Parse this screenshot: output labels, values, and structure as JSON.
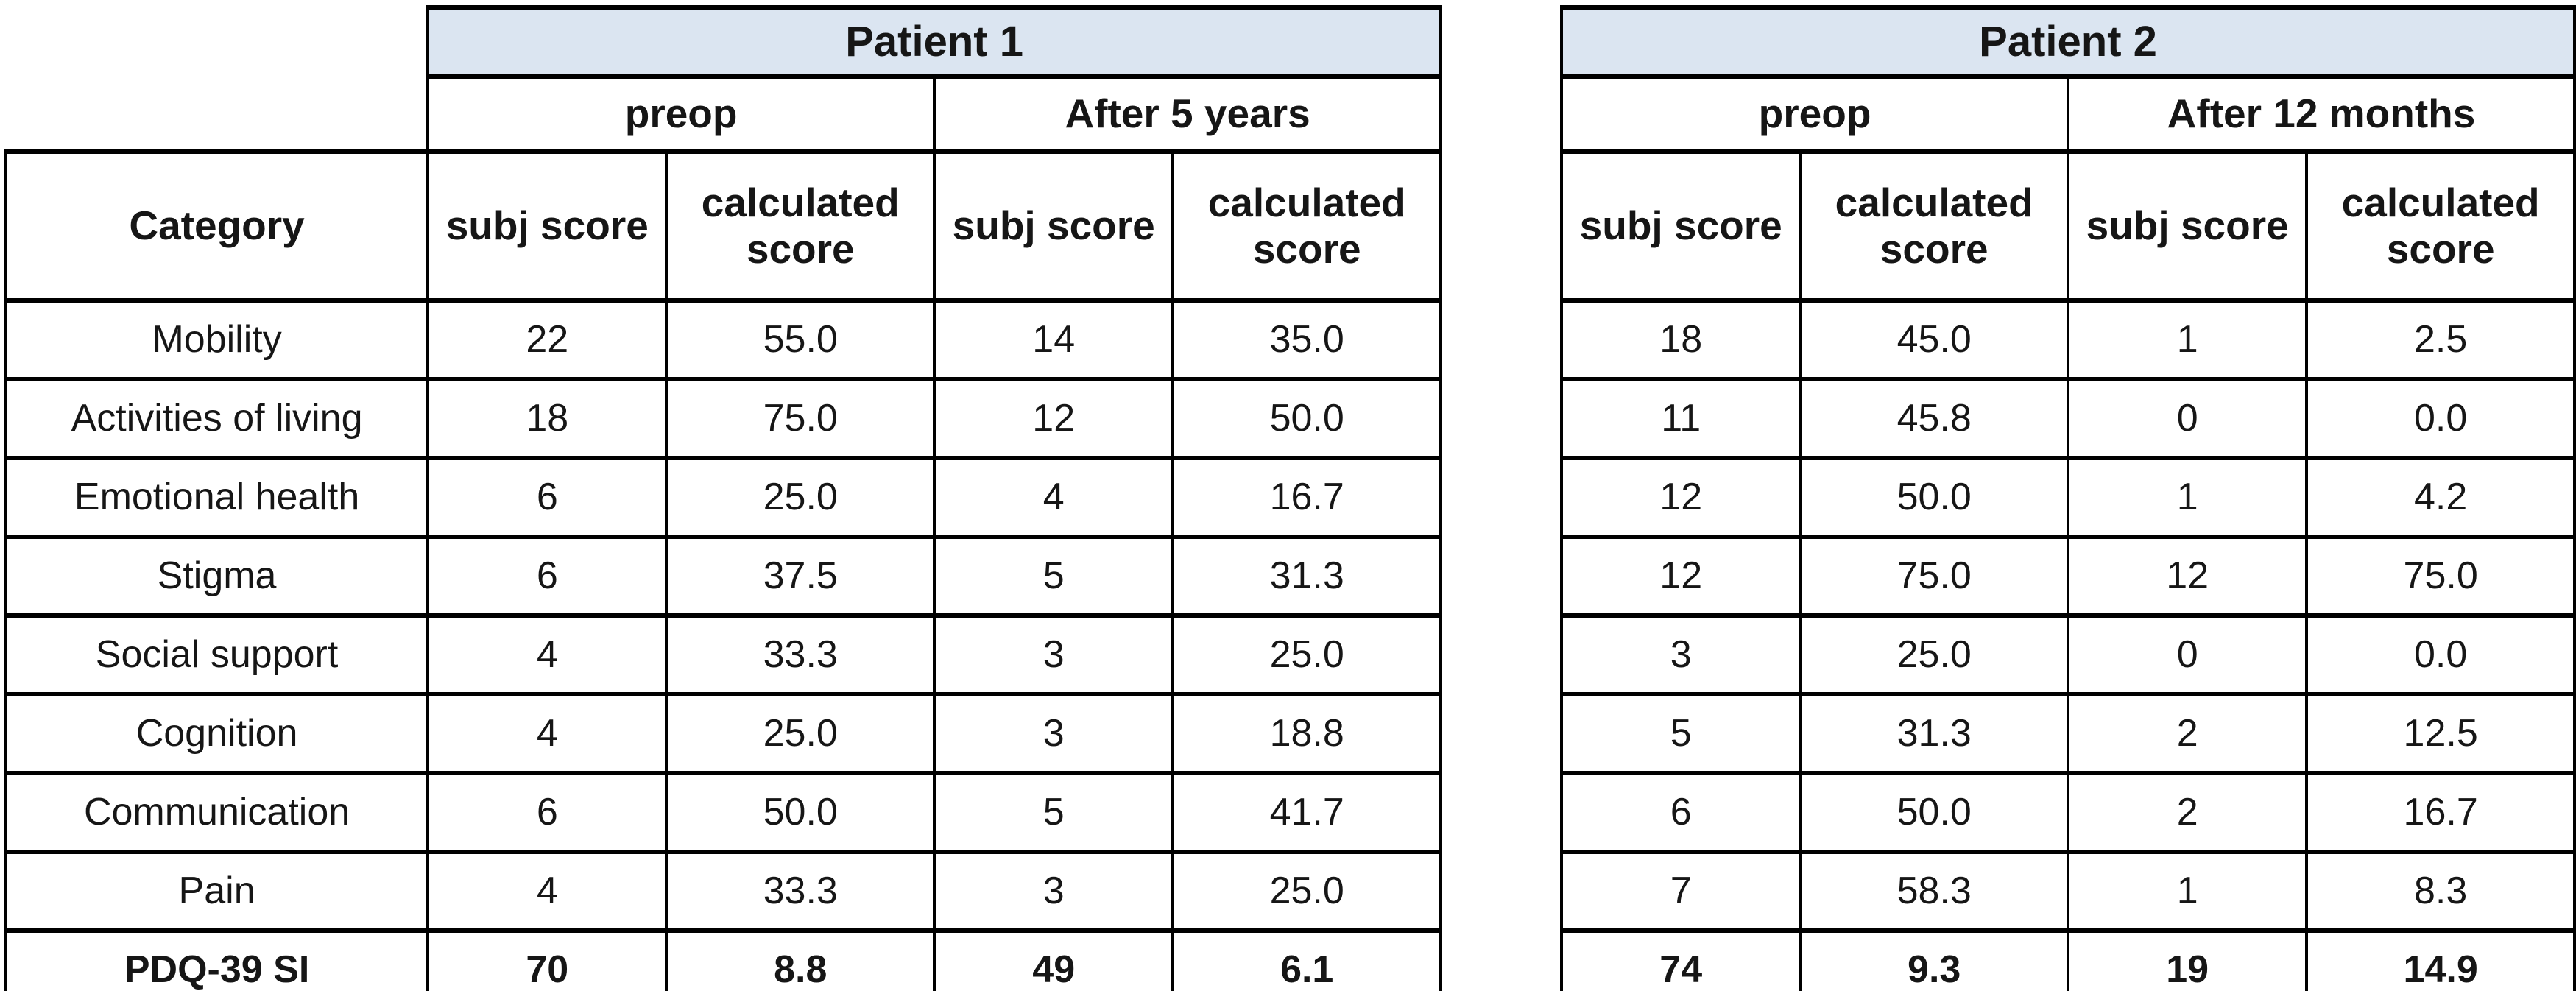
{
  "colors": {
    "patient_header_bg": "#dbe5f1",
    "border": "#000000",
    "text": "#161616"
  },
  "patient1": {
    "title": "Patient 1",
    "periods": [
      "preop",
      "After 5 years"
    ],
    "category_header": "Category",
    "score_headers": [
      "subj score",
      "calculated score",
      "subj score",
      "calculated score"
    ],
    "rows": [
      {
        "category": "Mobility",
        "values": [
          "22",
          "55.0",
          "14",
          "35.0"
        ]
      },
      {
        "category": "Activities of living",
        "values": [
          "18",
          "75.0",
          "12",
          "50.0"
        ]
      },
      {
        "category": "Emotional health",
        "values": [
          "6",
          "25.0",
          "4",
          "16.7"
        ]
      },
      {
        "category": "Stigma",
        "values": [
          "6",
          "37.5",
          "5",
          "31.3"
        ]
      },
      {
        "category": "Social support",
        "values": [
          "4",
          "33.3",
          "3",
          "25.0"
        ]
      },
      {
        "category": "Cognition",
        "values": [
          "4",
          "25.0",
          "3",
          "18.8"
        ]
      },
      {
        "category": "Communication",
        "values": [
          "6",
          "50.0",
          "5",
          "41.7"
        ]
      },
      {
        "category": "Pain",
        "values": [
          "4",
          "33.3",
          "3",
          "25.0"
        ]
      },
      {
        "category": "PDQ-39 SI",
        "values": [
          "70",
          "8.8",
          "49",
          "6.1"
        ],
        "bold": true
      }
    ]
  },
  "patient2": {
    "title": "Patient 2",
    "periods": [
      "preop",
      "After 12 months"
    ],
    "score_headers": [
      "subj score",
      "calculated score",
      "subj score",
      "calculated score"
    ],
    "rows": [
      {
        "values": [
          "18",
          "45.0",
          "1",
          "2.5"
        ]
      },
      {
        "values": [
          "11",
          "45.8",
          "0",
          "0.0"
        ]
      },
      {
        "values": [
          "12",
          "50.0",
          "1",
          "4.2"
        ]
      },
      {
        "values": [
          "12",
          "75.0",
          "12",
          "75.0"
        ]
      },
      {
        "values": [
          "3",
          "25.0",
          "0",
          "0.0"
        ]
      },
      {
        "values": [
          "5",
          "31.3",
          "2",
          "12.5"
        ]
      },
      {
        "values": [
          "6",
          "50.0",
          "2",
          "16.7"
        ]
      },
      {
        "values": [
          "7",
          "58.3",
          "1",
          "8.3"
        ]
      },
      {
        "values": [
          "74",
          "9.3",
          "19",
          "14.9"
        ],
        "bold": true
      }
    ]
  }
}
